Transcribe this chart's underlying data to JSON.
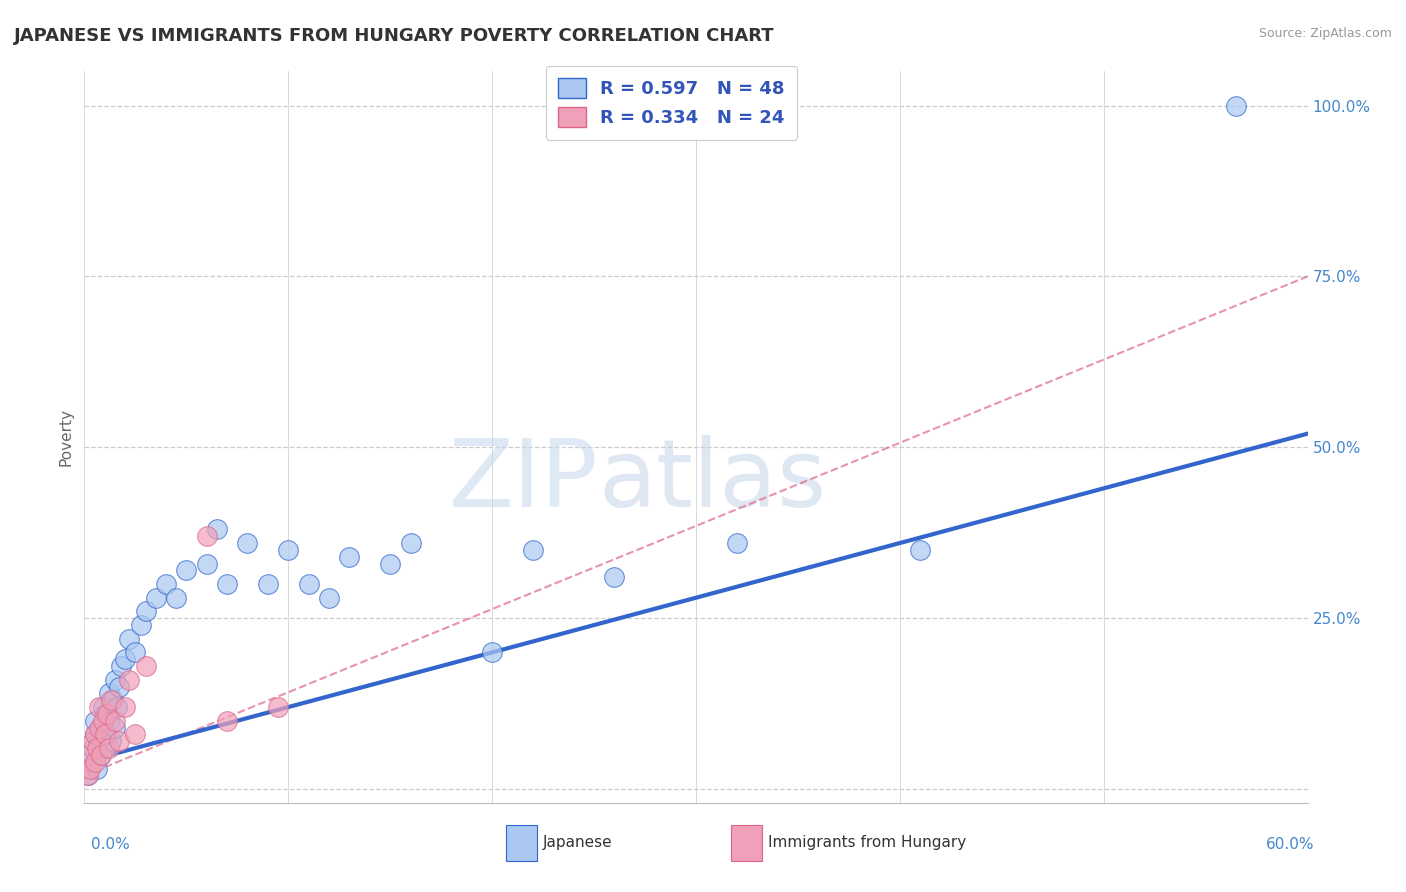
{
  "title": "JAPANESE VS IMMIGRANTS FROM HUNGARY POVERTY CORRELATION CHART",
  "source": "Source: ZipAtlas.com",
  "ylabel": "Poverty",
  "watermark_zip": "ZIP",
  "watermark_atlas": "atlas",
  "xlim": [
    0.0,
    0.6
  ],
  "ylim": [
    -0.02,
    1.05
  ],
  "yticks": [
    0.0,
    0.25,
    0.5,
    0.75,
    1.0
  ],
  "ytick_labels": [
    "",
    "25.0%",
    "50.0%",
    "75.0%",
    "100.0%"
  ],
  "xticks": [
    0.0,
    0.1,
    0.2,
    0.3,
    0.4,
    0.5,
    0.6
  ],
  "color_japanese": "#aac8f0",
  "color_hungary": "#f0a0b8",
  "color_blue_line": "#3366cc",
  "color_pink_line": "#dd6688",
  "color_title": "#333333",
  "color_legend_text": "#3355bb",
  "color_ytick": "#4488cc",
  "background": "#ffffff",
  "japanese_x": [
    0.002,
    0.003,
    0.004,
    0.005,
    0.005,
    0.006,
    0.007,
    0.008,
    0.008,
    0.009,
    0.01,
    0.01,
    0.011,
    0.012,
    0.012,
    0.013,
    0.014,
    0.015,
    0.015,
    0.016,
    0.017,
    0.018,
    0.02,
    0.022,
    0.025,
    0.028,
    0.03,
    0.035,
    0.04,
    0.045,
    0.05,
    0.06,
    0.065,
    0.07,
    0.08,
    0.09,
    0.1,
    0.11,
    0.12,
    0.13,
    0.15,
    0.16,
    0.2,
    0.22,
    0.26,
    0.32,
    0.41,
    0.565
  ],
  "japanese_y": [
    0.02,
    0.04,
    0.06,
    0.08,
    0.1,
    0.03,
    0.07,
    0.05,
    0.09,
    0.12,
    0.06,
    0.11,
    0.08,
    0.1,
    0.14,
    0.07,
    0.13,
    0.09,
    0.16,
    0.12,
    0.15,
    0.18,
    0.19,
    0.22,
    0.2,
    0.24,
    0.26,
    0.28,
    0.3,
    0.28,
    0.32,
    0.33,
    0.38,
    0.3,
    0.36,
    0.3,
    0.35,
    0.3,
    0.28,
    0.34,
    0.33,
    0.36,
    0.2,
    0.35,
    0.31,
    0.36,
    0.35,
    1.0
  ],
  "hungary_x": [
    0.002,
    0.002,
    0.003,
    0.004,
    0.005,
    0.005,
    0.006,
    0.007,
    0.007,
    0.008,
    0.009,
    0.01,
    0.011,
    0.012,
    0.013,
    0.015,
    0.017,
    0.02,
    0.022,
    0.025,
    0.03,
    0.06,
    0.07,
    0.095
  ],
  "hungary_y": [
    0.02,
    0.05,
    0.03,
    0.07,
    0.04,
    0.08,
    0.06,
    0.09,
    0.12,
    0.05,
    0.1,
    0.08,
    0.11,
    0.06,
    0.13,
    0.1,
    0.07,
    0.12,
    0.16,
    0.08,
    0.18,
    0.37,
    0.1,
    0.12
  ],
  "blue_line_x": [
    0.0,
    0.6
  ],
  "blue_line_y": [
    0.04,
    0.52
  ],
  "pink_line_x": [
    0.0,
    0.6
  ],
  "pink_line_y": [
    0.02,
    0.75
  ],
  "legend_items": [
    {
      "label": "R = 0.597   N = 48",
      "color": "#aac8f0",
      "edge": "#3366cc"
    },
    {
      "label": "R = 0.334   N = 24",
      "color": "#f0a0b8",
      "edge": "#dd6688"
    }
  ],
  "bottom_legend": [
    {
      "label": "Japanese",
      "color": "#aac8f0",
      "edge": "#3366cc"
    },
    {
      "label": "Immigrants from Hungary",
      "color": "#f0a0b8",
      "edge": "#dd6688"
    }
  ]
}
